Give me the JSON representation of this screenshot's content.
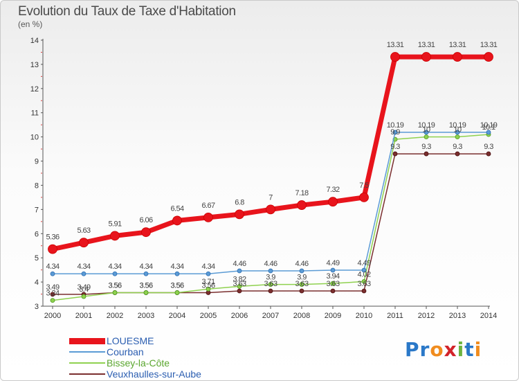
{
  "title": "Evolution du Taux de Taxe d'Habitation",
  "subtitle": "(en %)",
  "logo_text": "Proxiti",
  "chart_data": {
    "type": "line",
    "x": [
      "2000",
      "2001",
      "2002",
      "2003",
      "2004",
      "2005",
      "2006",
      "2007",
      "2008",
      "2009",
      "2010",
      "2011",
      "2012",
      "2013",
      "2014"
    ],
    "ylim": [
      3,
      14
    ],
    "yticks": [
      3,
      4,
      5,
      6,
      7,
      8,
      9,
      10,
      11,
      12,
      13,
      14
    ],
    "grid": false,
    "legend_position": "bottom-left",
    "series": [
      {
        "name": "LOUESME",
        "color": "#e8141c",
        "values": [
          5.36,
          5.63,
          5.91,
          6.06,
          6.54,
          6.67,
          6.8,
          7,
          7.18,
          7.32,
          7.5,
          13.31,
          13.31,
          13.31,
          13.31
        ],
        "labels": [
          "5.36",
          "5.63",
          "5.91",
          "6.06",
          "6.54",
          "6.67",
          "6.8",
          "7",
          "7.18",
          "7.32",
          "7.5",
          "13.31",
          "13.31",
          "13.31",
          "13.31"
        ]
      },
      {
        "name": "Courban",
        "color": "#5b9bd5",
        "values": [
          4.34,
          4.34,
          4.34,
          4.34,
          4.34,
          4.34,
          4.46,
          4.46,
          4.46,
          4.49,
          4.49,
          10.19,
          10.19,
          10.19,
          10.19
        ],
        "labels": [
          "4.34",
          "4.34",
          "4.34",
          "4.34",
          "4.34",
          "4.34",
          "4.46",
          "4.46",
          "4.46",
          "4.49",
          "4.49",
          "10.19",
          "10.19",
          "10.19",
          "10.19"
        ]
      },
      {
        "name": "Bissey-la-Côte",
        "color": "#8fd14f",
        "values": [
          3.24,
          3.4,
          3.56,
          3.56,
          3.56,
          3.71,
          3.82,
          3.9,
          3.9,
          3.94,
          4.02,
          9.9,
          10,
          10,
          10.1
        ],
        "labels": [
          "3.24",
          "3.4",
          "3.56",
          "3.56",
          "3.56",
          "3.71",
          "3.82",
          "3.9",
          "3.9",
          "3.94",
          "4.02",
          "9.9",
          "10",
          "10",
          "10.1"
        ]
      },
      {
        "name": "Veuxhaulles-sur-Aube",
        "color": "#7a2e2e",
        "values": [
          3.49,
          3.49,
          3.56,
          3.56,
          3.56,
          3.56,
          3.63,
          3.63,
          3.63,
          3.63,
          3.63,
          9.3,
          9.3,
          9.3,
          9.3
        ],
        "labels": [
          "3.49",
          "3.49",
          "3.56",
          "3.56",
          "3.56",
          "3.56",
          "3.63",
          "3.63",
          "3.63",
          "3.63",
          "3.63",
          "9.3",
          "9.3",
          "9.3",
          "9.3"
        ]
      }
    ]
  }
}
